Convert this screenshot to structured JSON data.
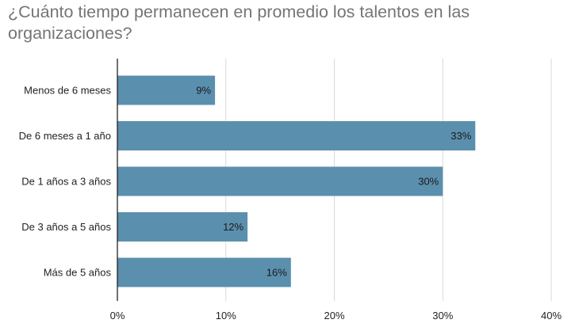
{
  "chart_data": {
    "type": "bar",
    "orientation": "horizontal",
    "title": "¿Cuánto tiempo permanecen en promedio los talentos en las organizaciones?",
    "categories": [
      "Menos de 6 meses",
      "De 6 meses a 1 año",
      "De 1 años a 3 años",
      "De 3 años a 5 años",
      "Más de 5 años"
    ],
    "values": [
      9,
      33,
      30,
      12,
      16
    ],
    "data_labels": [
      "9%",
      "33%",
      "30%",
      "12%",
      "16%"
    ],
    "xlim": [
      0,
      40
    ],
    "x_ticks": [
      0,
      10,
      20,
      30,
      40
    ],
    "x_tick_labels": [
      "0%",
      "10%",
      "20%",
      "30%",
      "40%"
    ],
    "xlabel": "",
    "ylabel": "",
    "grid": true,
    "legend": "none",
    "bar_color": "#5b8fae",
    "grid_color": "#d9d9d9",
    "axis_color": "#222222"
  }
}
